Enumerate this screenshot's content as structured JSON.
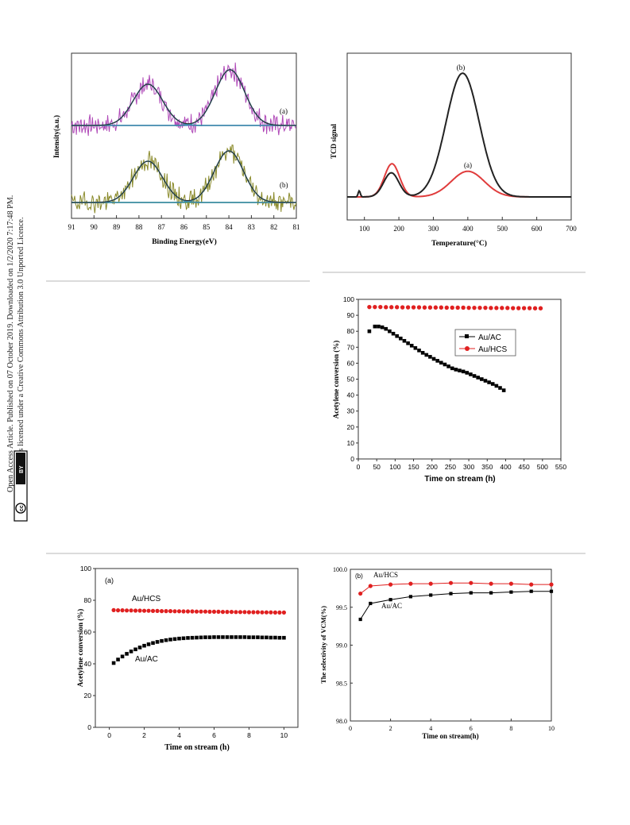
{
  "license": {
    "line1": "Open Access Article. Published on 07 October 2019. Downloaded on 1/2/2020 7:17:48 PM.",
    "line2": "This article is licensed under a Creative Commons Attribution 3.0 Unported Licence.",
    "cc_badge": "cc",
    "by_badge": "BY"
  },
  "colors": {
    "xps_a_raw": "#b04ab8",
    "xps_b_raw": "#8a8a2a",
    "xps_fit": "#3c8aa8",
    "xps_env": "#2a2a2a",
    "baseline_a": "#5a8ad0",
    "baseline_b": "#2a9a6a",
    "tcd_a": "#e03c3c",
    "tcd_b": "#222222",
    "au_ac": "#000000",
    "au_hcs": "#e02020"
  },
  "chart_data": [
    {
      "type": "line",
      "id": "xps",
      "xlabel": "Binding Energy(eV)",
      "ylabel": "Intensity(a.u.)",
      "xlim": [
        91,
        81
      ],
      "xticks": [
        91,
        90,
        89,
        88,
        87,
        86,
        85,
        84,
        83,
        82,
        81
      ],
      "series": [
        {
          "name": "(a)",
          "peaks": [
            {
              "center": 87.6,
              "height": 1.0
            },
            {
              "center": 83.95,
              "height": 1.35
            }
          ]
        },
        {
          "name": "(b)",
          "peaks": [
            {
              "center": 87.6,
              "height": 1.0
            },
            {
              "center": 84.0,
              "height": 1.25
            }
          ]
        }
      ]
    },
    {
      "type": "line",
      "id": "tcd",
      "xlabel": "Temperature(°C)",
      "ylabel": "TCD signal",
      "xlim": [
        50,
        700
      ],
      "xticks": [
        100,
        200,
        300,
        400,
        500,
        600,
        700
      ],
      "series": [
        {
          "name": "(a)",
          "peaks": [
            {
              "center": 180,
              "height": 0.22
            },
            {
              "center": 400,
              "height": 0.17
            }
          ]
        },
        {
          "name": "(b)",
          "peaks": [
            {
              "center": 178,
              "height": 0.16
            },
            {
              "center": 385,
              "height": 0.82
            }
          ]
        }
      ]
    },
    {
      "type": "scatter",
      "id": "stability",
      "xlabel": "Time on stream (h)",
      "ylabel": "Acetylene conversion (%)",
      "xlim": [
        0,
        550
      ],
      "ylim": [
        0,
        100
      ],
      "xticks": [
        0,
        50,
        100,
        150,
        200,
        250,
        300,
        350,
        400,
        450,
        500,
        550
      ],
      "yticks": [
        0,
        10,
        20,
        30,
        40,
        50,
        60,
        70,
        80,
        90,
        100
      ],
      "legend": "upper-right",
      "series": [
        {
          "name": "Au/AC",
          "x": [
            30,
            45,
            55,
            65,
            75,
            85,
            95,
            105,
            115,
            125,
            135,
            145,
            155,
            165,
            175,
            185,
            195,
            205,
            215,
            225,
            235,
            245,
            255,
            265,
            275,
            285,
            295,
            305,
            315,
            325,
            335,
            345,
            355,
            365,
            375,
            385,
            395
          ],
          "y": [
            80,
            83,
            83,
            82.5,
            81.5,
            80,
            78.5,
            77,
            75.5,
            74,
            72.5,
            71,
            69.5,
            68,
            66.5,
            65.2,
            64,
            62.7,
            61.5,
            60.3,
            59.2,
            58,
            56.8,
            56,
            55.4,
            54.8,
            54,
            53,
            52,
            51,
            50,
            49,
            48,
            47,
            45.8,
            44.5,
            43
          ]
        },
        {
          "name": "Au/HCS",
          "x": [
            30,
            45,
            60,
            75,
            90,
            105,
            120,
            135,
            150,
            165,
            180,
            195,
            210,
            225,
            240,
            255,
            270,
            285,
            300,
            315,
            330,
            345,
            360,
            375,
            390,
            405,
            420,
            435,
            450,
            465,
            480,
            495
          ],
          "y": [
            95.2,
            95.2,
            95.2,
            95.1,
            95.1,
            95.1,
            95,
            95,
            95,
            95,
            94.9,
            94.9,
            94.9,
            94.9,
            94.8,
            94.8,
            94.8,
            94.8,
            94.7,
            94.7,
            94.7,
            94.7,
            94.6,
            94.6,
            94.6,
            94.6,
            94.5,
            94.5,
            94.5,
            94.5,
            94.4,
            94.4
          ]
        }
      ]
    },
    {
      "type": "scatter",
      "id": "conversion-short",
      "panel": "(a)",
      "xlabel": "Time on stream (h)",
      "ylabel": "Acetylene conversion (%)",
      "xlim": [
        -0.8,
        10.8
      ],
      "ylim": [
        0,
        100
      ],
      "xticks": [
        0,
        2,
        4,
        6,
        8,
        10
      ],
      "yticks": [
        0,
        20,
        40,
        60,
        80,
        100
      ],
      "labels": {
        "hcs": "Au/HCS",
        "ac": "Au/AC"
      },
      "series": [
        {
          "name": "Au/AC",
          "x": [
            0.25,
            0.5,
            0.75,
            1,
            1.25,
            1.5,
            1.75,
            2,
            2.25,
            2.5,
            2.75,
            3,
            3.25,
            3.5,
            3.75,
            4,
            4.25,
            4.5,
            4.75,
            5,
            5.25,
            5.5,
            5.75,
            6,
            6.25,
            6.5,
            6.75,
            7,
            7.25,
            7.5,
            7.75,
            8,
            8.25,
            8.5,
            8.75,
            9,
            9.25,
            9.5,
            9.75,
            10
          ],
          "y": [
            40.5,
            42.7,
            44.6,
            46.3,
            47.8,
            49.1,
            50.3,
            51.4,
            52.3,
            53.1,
            53.8,
            54.4,
            54.9,
            55.3,
            55.6,
            55.9,
            56.1,
            56.3,
            56.4,
            56.5,
            56.6,
            56.7,
            56.7,
            56.8,
            56.8,
            56.8,
            56.8,
            56.8,
            56.8,
            56.8,
            56.8,
            56.7,
            56.7,
            56.7,
            56.6,
            56.6,
            56.5,
            56.5,
            56.4,
            56.4
          ]
        },
        {
          "name": "Au/HCS",
          "x": [
            0.25,
            0.5,
            0.75,
            1,
            1.25,
            1.5,
            1.75,
            2,
            2.25,
            2.5,
            2.75,
            3,
            3.25,
            3.5,
            3.75,
            4,
            4.25,
            4.5,
            4.75,
            5,
            5.25,
            5.5,
            5.75,
            6,
            6.25,
            6.5,
            6.75,
            7,
            7.25,
            7.5,
            7.75,
            8,
            8.25,
            8.5,
            8.75,
            9,
            9.25,
            9.5,
            9.75,
            10
          ],
          "y": [
            73.8,
            73.7,
            73.7,
            73.6,
            73.6,
            73.5,
            73.5,
            73.4,
            73.4,
            73.3,
            73.3,
            73.2,
            73.2,
            73.2,
            73.1,
            73.1,
            73,
            73,
            73,
            72.9,
            72.9,
            72.9,
            72.8,
            72.8,
            72.8,
            72.7,
            72.7,
            72.7,
            72.6,
            72.6,
            72.6,
            72.5,
            72.5,
            72.5,
            72.4,
            72.4,
            72.4,
            72.3,
            72.3,
            72.3
          ]
        }
      ]
    },
    {
      "type": "line",
      "id": "selectivity",
      "panel": "(b)",
      "xlabel": "Time on stream(h)",
      "ylabel": "The selectivity of VCM(%)",
      "xlim": [
        0,
        10
      ],
      "ylim": [
        98.0,
        100.0
      ],
      "xticks": [
        0,
        2,
        4,
        6,
        8,
        10
      ],
      "yticks": [
        "98.0",
        "98.5",
        "99.0",
        "99.5",
        "100.0"
      ],
      "labels": {
        "hcs": "Au/HCS",
        "ac": "Au/AC"
      },
      "series": [
        {
          "name": "Au/AC",
          "x": [
            0.5,
            1,
            2,
            3,
            4,
            5,
            6,
            7,
            8,
            9,
            10
          ],
          "y": [
            99.34,
            99.55,
            99.6,
            99.64,
            99.66,
            99.68,
            99.69,
            99.69,
            99.7,
            99.71,
            99.71
          ]
        },
        {
          "name": "Au/HCS",
          "x": [
            0.5,
            1,
            2,
            3,
            4,
            5,
            6,
            7,
            8,
            9,
            10
          ],
          "y": [
            99.68,
            99.78,
            99.8,
            99.81,
            99.81,
            99.82,
            99.82,
            99.81,
            99.81,
            99.8,
            99.8
          ]
        }
      ]
    }
  ]
}
